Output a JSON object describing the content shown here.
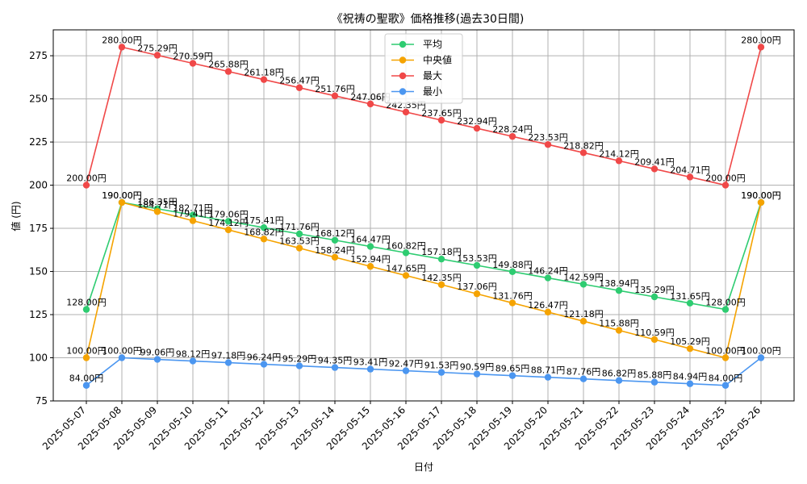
{
  "chart_data": {
    "type": "line",
    "title": "《祝祷の聖歌》価格推移(過去30日間)",
    "xlabel": "日付",
    "ylabel": "値 (円)",
    "ylim": [
      75,
      290
    ],
    "yticks": [
      75,
      100,
      125,
      150,
      175,
      200,
      225,
      250,
      275
    ],
    "grid": true,
    "legend_position": "top-center",
    "label_suffix": "円",
    "categories": [
      "2025-05-07",
      "2025-05-08",
      "2025-05-09",
      "2025-05-10",
      "2025-05-11",
      "2025-05-12",
      "2025-05-13",
      "2025-05-14",
      "2025-05-15",
      "2025-05-16",
      "2025-05-17",
      "2025-05-18",
      "2025-05-19",
      "2025-05-20",
      "2025-05-21",
      "2025-05-22",
      "2025-05-23",
      "2025-05-24",
      "2025-05-25",
      "2025-05-26"
    ],
    "series": [
      {
        "name": "平均",
        "color": "#2ecc71",
        "values": [
          128.0,
          190.0,
          186.35,
          182.71,
          179.06,
          175.41,
          171.76,
          168.12,
          164.47,
          160.82,
          157.18,
          153.53,
          149.88,
          146.24,
          142.59,
          138.94,
          135.29,
          131.65,
          128.0,
          190.0
        ]
      },
      {
        "name": "中央値",
        "color": "#f5a300",
        "values": [
          100.0,
          190.0,
          184.71,
          179.41,
          174.12,
          168.82,
          163.53,
          158.24,
          152.94,
          147.65,
          142.35,
          137.06,
          131.76,
          126.47,
          121.18,
          115.88,
          110.59,
          105.29,
          100.0,
          190.0
        ]
      },
      {
        "name": "最大",
        "color": "#f04848",
        "values": [
          200.0,
          280.0,
          275.29,
          270.59,
          265.88,
          261.18,
          256.47,
          251.76,
          247.06,
          242.35,
          237.65,
          232.94,
          228.24,
          223.53,
          218.82,
          214.12,
          209.41,
          204.71,
          200.0,
          280.0
        ]
      },
      {
        "name": "最小",
        "color": "#4b96f0",
        "values": [
          84.0,
          100.0,
          99.06,
          98.12,
          97.18,
          96.24,
          95.29,
          94.35,
          93.41,
          92.47,
          91.53,
          90.59,
          89.65,
          88.71,
          87.76,
          86.82,
          85.88,
          84.94,
          84.0,
          100.0
        ]
      }
    ]
  }
}
